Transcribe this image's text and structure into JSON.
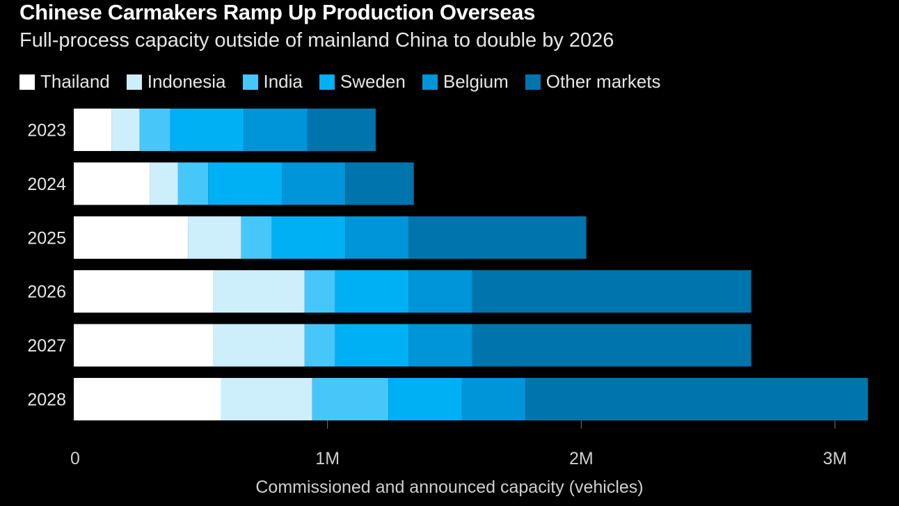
{
  "chart_data": {
    "type": "bar",
    "orientation": "horizontal",
    "stacked": true,
    "title": "Chinese Carmakers Ramp Up Production Overseas",
    "subtitle": "Full-process capacity outside of mainland China to double by 2026",
    "xlabel": "Commissioned and announced capacity (vehicles)",
    "ylabel": "",
    "categories": [
      "2023",
      "2024",
      "2025",
      "2026",
      "2027",
      "2028"
    ],
    "xlim": [
      0,
      3000000
    ],
    "xticks": [
      0,
      1000000,
      2000000,
      3000000
    ],
    "xtick_labels": [
      "0",
      "1M",
      "2M",
      "3M"
    ],
    "legend_position": "top",
    "series": [
      {
        "name": "Thailand",
        "color": "#ffffff",
        "values": [
          150000,
          300000,
          450000,
          550000,
          550000,
          580000
        ]
      },
      {
        "name": "Indonesia",
        "color": "#cdeefb",
        "values": [
          110000,
          110000,
          210000,
          360000,
          360000,
          360000
        ]
      },
      {
        "name": "India",
        "color": "#47c6fa",
        "values": [
          120000,
          120000,
          120000,
          120000,
          120000,
          300000
        ]
      },
      {
        "name": "Sweden",
        "color": "#00b0f5",
        "values": [
          290000,
          290000,
          290000,
          290000,
          290000,
          290000
        ]
      },
      {
        "name": "Belgium",
        "color": "#0095d8",
        "values": [
          250000,
          250000,
          250000,
          250000,
          250000,
          250000
        ]
      },
      {
        "name": "Other markets",
        "color": "#0075ad",
        "values": [
          270000,
          270000,
          700000,
          1100000,
          1100000,
          1350000
        ]
      }
    ]
  }
}
